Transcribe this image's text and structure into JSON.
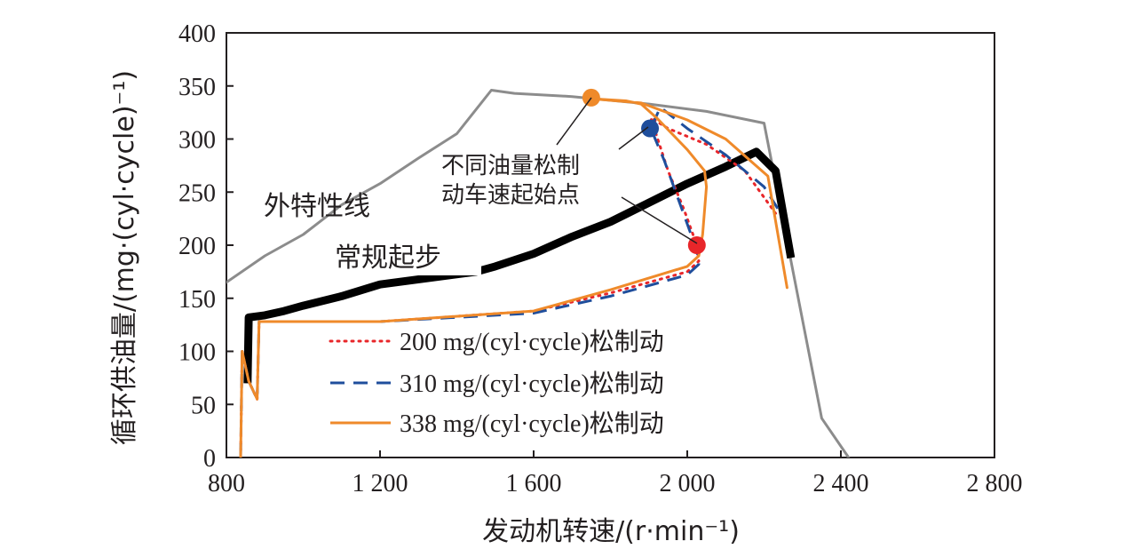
{
  "chart_data": {
    "type": "line",
    "title": "",
    "xlabel": "发动机转速/(r·min⁻¹)",
    "ylabel": "循环供油量/(mg·(cyl·cycle)⁻¹)",
    "xlim": [
      800,
      2800
    ],
    "ylim": [
      0,
      400
    ],
    "x_ticks": [
      800,
      1200,
      1600,
      2000,
      2400,
      2800
    ],
    "x_tick_labels": [
      "800",
      "1 200",
      "1 600",
      "2 000",
      "2 400",
      "2 800"
    ],
    "y_ticks": [
      0,
      50,
      100,
      150,
      200,
      250,
      300,
      350,
      400
    ],
    "y_tick_labels": [
      "0",
      "50",
      "100",
      "150",
      "200",
      "250",
      "300",
      "350",
      "400"
    ],
    "grid": false,
    "legend_position": "bottom-center",
    "series": [
      {
        "name": "",
        "role": "外特性线",
        "color": "#8c8c8c",
        "style": "solid",
        "points": [
          [
            800,
            165
          ],
          [
            900,
            190
          ],
          [
            1000,
            210
          ],
          [
            1100,
            238
          ],
          [
            1200,
            258
          ],
          [
            1300,
            282
          ],
          [
            1400,
            305
          ],
          [
            1490,
            346
          ],
          [
            1550,
            343
          ],
          [
            1700,
            340
          ],
          [
            1900,
            333
          ],
          [
            2050,
            326
          ],
          [
            2200,
            315
          ],
          [
            2350,
            37
          ],
          [
            2420,
            0
          ]
        ]
      },
      {
        "name": "",
        "role": "常规起步",
        "color": "#000000",
        "style": "thick",
        "points": [
          [
            855,
            70
          ],
          [
            858,
            132
          ],
          [
            900,
            134
          ],
          [
            950,
            138
          ],
          [
            1000,
            143
          ],
          [
            1100,
            152
          ],
          [
            1200,
            163
          ],
          [
            1450,
            175
          ],
          [
            1500,
            180
          ],
          [
            1600,
            192
          ],
          [
            1700,
            208
          ],
          [
            1800,
            222
          ],
          [
            1900,
            240
          ],
          [
            2000,
            258
          ],
          [
            2100,
            274
          ],
          [
            2180,
            288
          ],
          [
            2230,
            270
          ],
          [
            2270,
            188
          ]
        ]
      },
      {
        "name": "200 mg/(cyl·cycle)松制动",
        "color": "#e8262a",
        "style": "dotted",
        "points": [
          [
            837,
            0
          ],
          [
            841,
            100
          ],
          [
            858,
            72
          ],
          [
            880,
            55
          ],
          [
            885,
            128
          ],
          [
            1200,
            128
          ],
          [
            1600,
            138
          ],
          [
            1800,
            155
          ],
          [
            2000,
            175
          ],
          [
            2030,
            185
          ],
          [
            2025,
            200
          ],
          [
            1990,
            235
          ],
          [
            1950,
            270
          ],
          [
            1905,
            320
          ],
          [
            1950,
            310
          ],
          [
            2050,
            295
          ],
          [
            2150,
            270
          ],
          [
            2230,
            230
          ]
        ]
      },
      {
        "name": "310 mg/(cyl·cycle)松制动",
        "color": "#1f4e9c",
        "style": "dashed",
        "points": [
          [
            837,
            0
          ],
          [
            841,
            100
          ],
          [
            858,
            72
          ],
          [
            880,
            55
          ],
          [
            885,
            128
          ],
          [
            1200,
            128
          ],
          [
            1600,
            136
          ],
          [
            1800,
            152
          ],
          [
            2000,
            172
          ],
          [
            2030,
            182
          ],
          [
            2025,
            195
          ],
          [
            1990,
            230
          ],
          [
            1940,
            280
          ],
          [
            1905,
            310
          ],
          [
            1930,
            330
          ],
          [
            2000,
            310
          ],
          [
            2100,
            285
          ],
          [
            2200,
            255
          ],
          [
            2240,
            232
          ]
        ]
      },
      {
        "name": "338 mg/(cyl·cycle)松制动",
        "color": "#ef8a2a",
        "style": "solid",
        "points": [
          [
            837,
            0
          ],
          [
            841,
            100
          ],
          [
            858,
            72
          ],
          [
            880,
            55
          ],
          [
            885,
            128
          ],
          [
            1200,
            128
          ],
          [
            1600,
            138
          ],
          [
            1800,
            158
          ],
          [
            2000,
            180
          ],
          [
            2030,
            190
          ],
          [
            2040,
            210
          ],
          [
            2050,
            255
          ],
          [
            2045,
            270
          ],
          [
            2000,
            290
          ],
          [
            1920,
            320
          ],
          [
            1880,
            333
          ],
          [
            1840,
            336
          ],
          [
            1750,
            338
          ],
          [
            1880,
            334
          ],
          [
            2000,
            318
          ],
          [
            2100,
            300
          ],
          [
            2210,
            265
          ],
          [
            2260,
            160
          ]
        ]
      }
    ],
    "markers": [
      {
        "label": "",
        "x": 1750,
        "y": 339,
        "color": "#ef8a2a"
      },
      {
        "label": "",
        "x": 1903,
        "y": 310,
        "color": "#1f4e9c"
      },
      {
        "label": "",
        "x": 2025,
        "y": 200,
        "color": "#e8262a"
      }
    ],
    "annotations": {
      "outer_curve": "外特性线",
      "normal_start": "常规起步",
      "release_points_line1": "不同油量松制",
      "release_points_line2": "动车速起始点"
    }
  }
}
